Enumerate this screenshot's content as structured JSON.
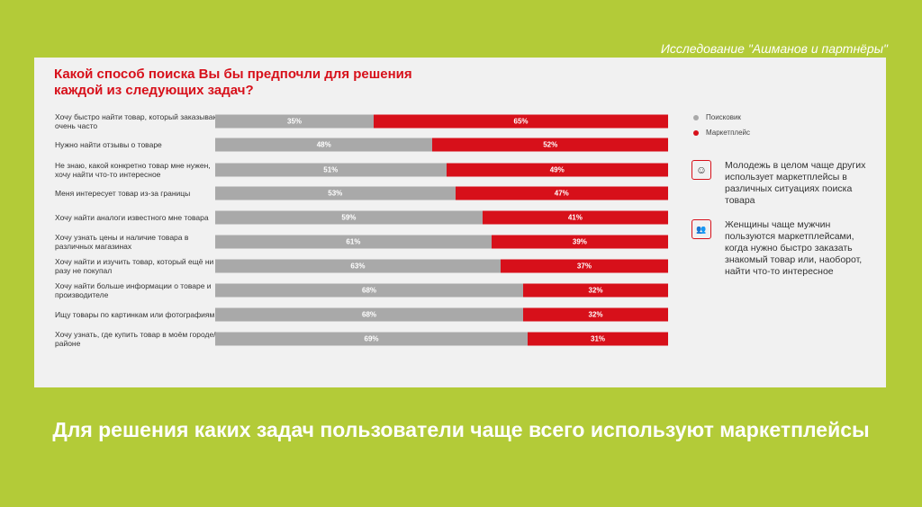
{
  "source": "Исследование \"Ашманов и партнёры\"",
  "headline": "Для решения каких задач пользователи чаще всего используют маркетплейсы",
  "notes": [
    {
      "icon": "smiley-icon",
      "text": "Молодежь в целом чаще других использует маркетплейсы в различных ситуациях поиска товара"
    },
    {
      "icon": "people-icon",
      "text": "Женщины чаще мужчин пользуются маркетплейсами, когда нужно быстро заказать знакомый товар или, наоборот, найти что-то интересное"
    }
  ],
  "chart_data": {
    "type": "bar",
    "stacked": true,
    "orientation": "horizontal",
    "title": "Какой способ поиска Вы бы предпочли для решения каждой из следующих задач?",
    "legend_position": "right",
    "categories": [
      "Хочу быстро найти товар, который заказываю очень часто",
      "Нужно найти отзывы о товаре",
      "Не знаю, какой конкретно товар мне нужен, хочу найти что-то интересное",
      "Меня интересует товар из-за границы",
      "Хочу найти аналоги известного мне товара",
      "Хочу узнать цены и наличие товара в различных магазинах",
      "Хочу найти и изучить товар, который ещё ни разу не покупал",
      "Хочу найти больше информации о товаре и производителе",
      "Ищу товары по картинкам или фотографиям",
      "Хочу узнать, где купить товар в моём городе/районе"
    ],
    "series": [
      {
        "name": "Поисковик",
        "color": "#a9a9a9",
        "values": [
          35,
          48,
          51,
          53,
          59,
          61,
          63,
          68,
          68,
          69
        ]
      },
      {
        "name": "Маркетплейс",
        "color": "#d7101a",
        "values": [
          65,
          52,
          49,
          47,
          41,
          39,
          37,
          32,
          32,
          31
        ]
      }
    ]
  }
}
